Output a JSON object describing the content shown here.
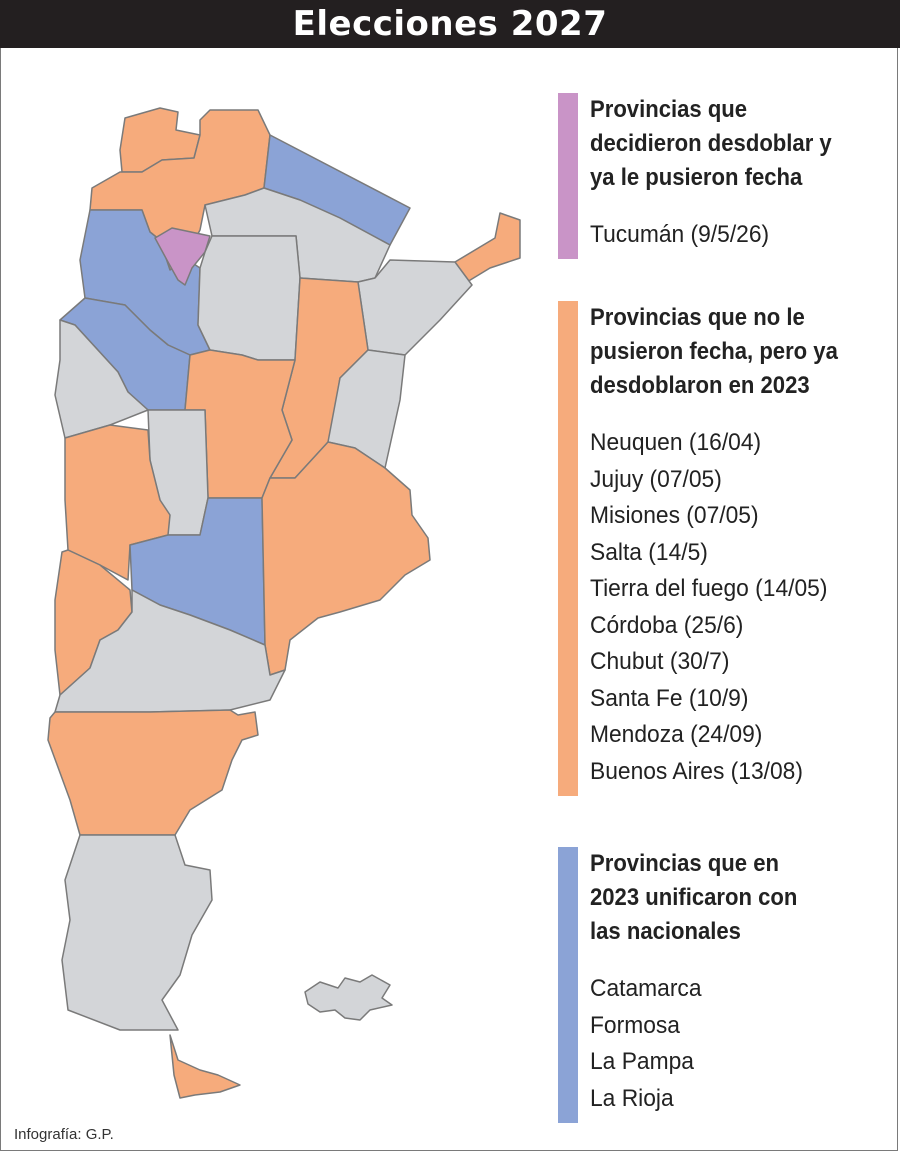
{
  "title": "Elecciones 2027",
  "credit": "Infografía: G.P.",
  "colors": {
    "purple": "#c994c7",
    "orange": "#f6ab7c",
    "blue": "#8ba3d6",
    "gray": "#d3d5d8",
    "border": "#7a7a7a"
  },
  "legend": [
    {
      "color": "#c994c7",
      "heading": [
        "Provincias que",
        "decidieron desdoblar y",
        "ya le pusieron fecha"
      ],
      "items": [
        "Tucumán (9/5/26)"
      ]
    },
    {
      "color": "#f6ab7c",
      "heading": [
        "Provincias que no le",
        "pusieron fecha, pero ya",
        "desdoblaron en 2023"
      ],
      "items": [
        "Neuquen (16/04)",
        "Jujuy (07/05)",
        "Misiones (07/05)",
        "Salta (14/5)",
        "Tierra del fuego (14/05)",
        "Córdoba (25/6)",
        "Chubut (30/7)",
        "Santa Fe (10/9)",
        "Mendoza (24/09)",
        "Buenos Aires (13/08)"
      ]
    },
    {
      "color": "#8ba3d6",
      "heading": [
        "Provincias que en",
        "2023 unificaron con",
        "las nacionales"
      ],
      "items": [
        "Catamarca",
        "Formosa",
        "La Pampa",
        "La Rioja"
      ]
    }
  ]
}
